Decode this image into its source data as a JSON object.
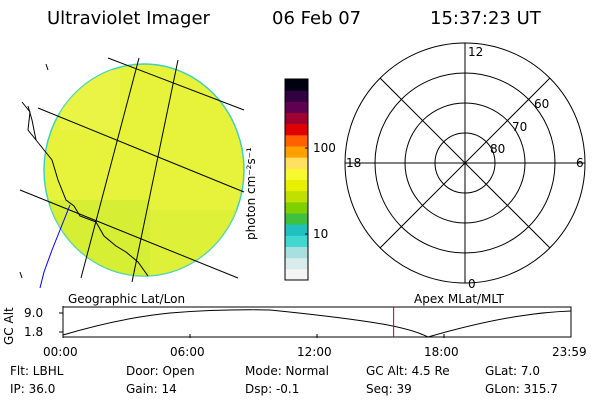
{
  "header": {
    "instrument": "Ultraviolet Imager",
    "date": "06 Feb 07",
    "time": "15:37:23 UT"
  },
  "colorbar": {
    "unit_label": "photon cm⁻²s⁻¹",
    "ticks": [
      "100",
      "10"
    ],
    "scale": "log",
    "colors": [
      "#f4f4f4",
      "#d8ecec",
      "#a8e0e0",
      "#40d8d0",
      "#20c0c0",
      "#40c040",
      "#80d000",
      "#c0e000",
      "#e8f000",
      "#f8f830",
      "#ffe060",
      "#ffa000",
      "#ff6000",
      "#e00000",
      "#a00030",
      "#600050",
      "#300040",
      "#000010"
    ]
  },
  "image_panel": {
    "caption": "Geographic Lat/Lon",
    "fill_color": "#e6f33a"
  },
  "polar_plot": {
    "caption": "Apex MLat/MLT",
    "mlt_labels": [
      "12",
      "18",
      "6",
      "0"
    ],
    "lat_labels": [
      "60",
      "70",
      "80"
    ]
  },
  "altitude_plot": {
    "ylabel": "GC Alt",
    "y_ticks": [
      "9.0",
      "1.8"
    ],
    "x_ticks": [
      "00:00",
      "06:00",
      "12:00",
      "18:00",
      "23:59"
    ],
    "marker_time_hours": 15.62,
    "marker_color": "#cc0000"
  },
  "info": {
    "flt": "Flt: LBHL",
    "ip": "IP: 36.0",
    "door": "Door: Open",
    "gain": "Gain: 14",
    "mode": "Mode: Normal",
    "dsp": "Dsp:   -0.1",
    "gc_alt": "GC Alt: 4.5 Re",
    "seq": "Seq: 39",
    "glat": "GLat:   7.0",
    "glon": "GLon: 315.7"
  }
}
